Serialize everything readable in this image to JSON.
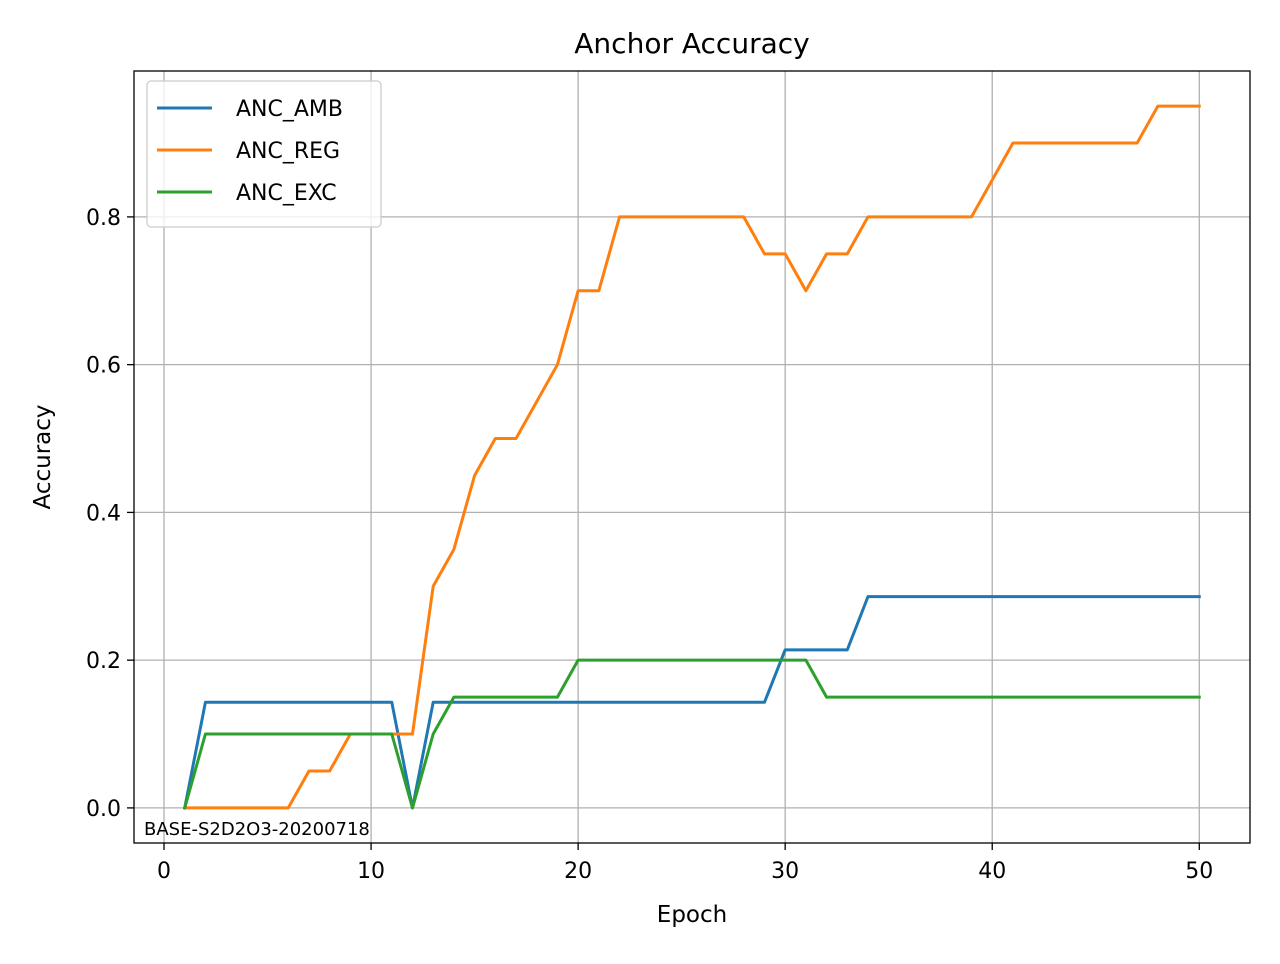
{
  "chart_data": {
    "type": "line",
    "title": "Anchor Accuracy",
    "xlabel": "Epoch",
    "ylabel": "Accuracy",
    "xlim": [
      -1.45,
      52.45
    ],
    "ylim": [
      -0.0475,
      0.9975
    ],
    "xticks": [
      0,
      10,
      20,
      30,
      40,
      50
    ],
    "xtick_labels": [
      "0",
      "10",
      "20",
      "30",
      "40",
      "50"
    ],
    "yticks": [
      0.0,
      0.2,
      0.4,
      0.6,
      0.8
    ],
    "ytick_labels": [
      "0.0",
      "0.2",
      "0.4",
      "0.6",
      "0.8"
    ],
    "grid": true,
    "legend_position": "top-left",
    "annotation": "BASE-S2D2O3-20200718",
    "x": [
      1,
      2,
      3,
      4,
      5,
      6,
      7,
      8,
      9,
      10,
      11,
      12,
      13,
      14,
      15,
      16,
      17,
      18,
      19,
      20,
      21,
      22,
      23,
      24,
      25,
      26,
      27,
      28,
      29,
      30,
      31,
      32,
      33,
      34,
      35,
      36,
      37,
      38,
      39,
      40,
      41,
      42,
      43,
      44,
      45,
      46,
      47,
      48,
      49,
      50
    ],
    "series": [
      {
        "name": "ANC_AMB",
        "color": "#1f77b4",
        "values": [
          0,
          0.143,
          0.143,
          0.143,
          0.143,
          0.143,
          0.143,
          0.143,
          0.143,
          0.143,
          0.143,
          0,
          0.143,
          0.143,
          0.143,
          0.143,
          0.143,
          0.143,
          0.143,
          0.143,
          0.143,
          0.143,
          0.143,
          0.143,
          0.143,
          0.143,
          0.143,
          0.143,
          0.143,
          0.214,
          0.214,
          0.214,
          0.214,
          0.286,
          0.286,
          0.286,
          0.286,
          0.286,
          0.286,
          0.286,
          0.286,
          0.286,
          0.286,
          0.286,
          0.286,
          0.286,
          0.286,
          0.286,
          0.286,
          0.286
        ]
      },
      {
        "name": "ANC_REG",
        "color": "#ff7f0e",
        "values": [
          0,
          0,
          0,
          0,
          0,
          0,
          0.05,
          0.05,
          0.1,
          0.1,
          0.1,
          0.1,
          0.3,
          0.35,
          0.45,
          0.5,
          0.5,
          0.55,
          0.6,
          0.7,
          0.7,
          0.8,
          0.8,
          0.8,
          0.8,
          0.8,
          0.8,
          0.8,
          0.75,
          0.75,
          0.7,
          0.75,
          0.75,
          0.8,
          0.8,
          0.8,
          0.8,
          0.8,
          0.8,
          0.85,
          0.9,
          0.9,
          0.9,
          0.9,
          0.9,
          0.9,
          0.9,
          0.95,
          0.95,
          0.95
        ]
      },
      {
        "name": "ANC_EXC",
        "color": "#2ca02c",
        "values": [
          0,
          0.1,
          0.1,
          0.1,
          0.1,
          0.1,
          0.1,
          0.1,
          0.1,
          0.1,
          0.1,
          0,
          0.1,
          0.15,
          0.15,
          0.15,
          0.15,
          0.15,
          0.15,
          0.2,
          0.2,
          0.2,
          0.2,
          0.2,
          0.2,
          0.2,
          0.2,
          0.2,
          0.2,
          0.2,
          0.2,
          0.15,
          0.15,
          0.15,
          0.15,
          0.15,
          0.15,
          0.15,
          0.15,
          0.15,
          0.15,
          0.15,
          0.15,
          0.15,
          0.15,
          0.15,
          0.15,
          0.15,
          0.15,
          0.15
        ]
      }
    ]
  }
}
